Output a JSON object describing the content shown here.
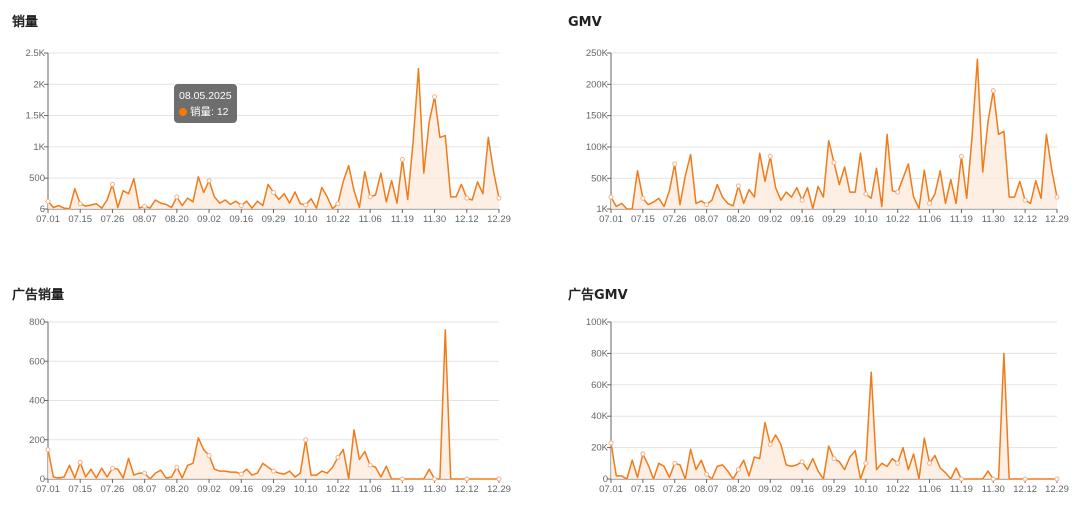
{
  "colors": {
    "line": "#f07b1a",
    "fill": "#fdebdc",
    "grid": "#e3e3e3",
    "axis": "#666666"
  },
  "x_labels": [
    "07.01",
    "07.15",
    "07.26",
    "08.07",
    "08.20",
    "09.02",
    "09.16",
    "09.29",
    "10.10",
    "10.22",
    "11.06",
    "11.19",
    "11.30",
    "12.12",
    "12.29"
  ],
  "tooltip": {
    "date": "08.05.2025",
    "series": "销量",
    "value": "12",
    "text": "销量: 12"
  },
  "chart_data": [
    {
      "type": "area",
      "title": "销量",
      "ylim": [
        6,
        2500
      ],
      "yticks": [
        {
          "v": 6,
          "label": "6"
        },
        {
          "v": 500,
          "label": "500"
        },
        {
          "v": 1000,
          "label": "1K"
        },
        {
          "v": 1500,
          "label": "1.5K"
        },
        {
          "v": 2000,
          "label": "2K"
        },
        {
          "v": 2500,
          "label": "2.5K"
        }
      ],
      "x_range": [
        "07.01",
        "12.29"
      ],
      "values": [
        130,
        30,
        60,
        20,
        10,
        330,
        90,
        50,
        70,
        90,
        20,
        150,
        400,
        30,
        300,
        250,
        490,
        20,
        50,
        20,
        150,
        100,
        80,
        30,
        200,
        60,
        180,
        120,
        520,
        270,
        460,
        200,
        100,
        150,
        80,
        130,
        60,
        130,
        20,
        130,
        60,
        400,
        270,
        160,
        250,
        100,
        280,
        90,
        70,
        170,
        20,
        350,
        200,
        10,
        90,
        450,
        700,
        300,
        30,
        600,
        200,
        230,
        580,
        120,
        460,
        100,
        800,
        160,
        1080,
        2250,
        580,
        1400,
        1800,
        1150,
        1180,
        200,
        200,
        400,
        180,
        150,
        440,
        250,
        1150,
        600,
        180
      ]
    },
    {
      "type": "area",
      "title": "GMV",
      "ylim": [
        1000,
        250000
      ],
      "yticks": [
        {
          "v": 1000,
          "label": "1K"
        },
        {
          "v": 50000,
          "label": "50K"
        },
        {
          "v": 100000,
          "label": "100K"
        },
        {
          "v": 150000,
          "label": "150K"
        },
        {
          "v": 200000,
          "label": "200K"
        },
        {
          "v": 250000,
          "label": "250K"
        }
      ],
      "x_range": [
        "07.01",
        "12.29"
      ],
      "values": [
        20000,
        5000,
        10000,
        1000,
        1000,
        62000,
        18000,
        8000,
        12000,
        18000,
        5000,
        30000,
        73000,
        8000,
        54000,
        88000,
        10000,
        14000,
        8000,
        15000,
        40000,
        20000,
        10000,
        6000,
        38000,
        10000,
        32000,
        20000,
        90000,
        45000,
        85000,
        35000,
        15000,
        28000,
        20000,
        35000,
        15000,
        35000,
        2000,
        37000,
        20000,
        110000,
        75000,
        40000,
        68000,
        28000,
        28000,
        90000,
        25000,
        18000,
        66000,
        5000,
        120000,
        30000,
        28000,
        50000,
        73000,
        20000,
        2000,
        63000,
        10000,
        25000,
        62000,
        10000,
        48000,
        10000,
        85000,
        18000,
        115000,
        240000,
        60000,
        140000,
        190000,
        120000,
        125000,
        20000,
        20000,
        45000,
        15000,
        10000,
        46000,
        18000,
        120000,
        64000,
        20000
      ]
    },
    {
      "type": "area",
      "title": "广告销量",
      "ylim": [
        0,
        800
      ],
      "yticks": [
        {
          "v": 0,
          "label": "0"
        },
        {
          "v": 200,
          "label": "200"
        },
        {
          "v": 400,
          "label": "400"
        },
        {
          "v": 600,
          "label": "600"
        },
        {
          "v": 800,
          "label": "800"
        }
      ],
      "x_range": [
        "07.01",
        "12.29"
      ],
      "values": [
        150,
        10,
        5,
        10,
        70,
        5,
        85,
        10,
        50,
        5,
        55,
        10,
        55,
        50,
        5,
        105,
        20,
        30,
        30,
        0,
        30,
        45,
        5,
        10,
        60,
        5,
        70,
        80,
        210,
        150,
        120,
        50,
        40,
        40,
        35,
        35,
        25,
        50,
        20,
        30,
        80,
        60,
        40,
        30,
        25,
        40,
        10,
        30,
        200,
        20,
        20,
        40,
        30,
        60,
        110,
        150,
        0,
        250,
        100,
        140,
        70,
        60,
        10,
        65,
        0,
        0,
        0,
        0,
        0,
        0,
        0,
        50,
        0,
        0,
        760,
        0,
        0,
        0,
        0,
        0,
        0,
        0,
        0,
        0,
        0
      ]
    },
    {
      "type": "area",
      "title": "广告GMV",
      "ylim": [
        0,
        100000
      ],
      "yticks": [
        {
          "v": 0,
          "label": "0"
        },
        {
          "v": 20000,
          "label": "20K"
        },
        {
          "v": 40000,
          "label": "40K"
        },
        {
          "v": 60000,
          "label": "60K"
        },
        {
          "v": 80000,
          "label": "80K"
        },
        {
          "v": 100000,
          "label": "100K"
        }
      ],
      "x_range": [
        "07.01",
        "12.29"
      ],
      "values": [
        23000,
        2000,
        2000,
        0,
        12000,
        1000,
        16000,
        9000,
        0,
        10000,
        8000,
        1000,
        10000,
        9000,
        0,
        19000,
        6000,
        12000,
        3000,
        0,
        8000,
        9000,
        5000,
        0,
        6000,
        12000,
        2000,
        14000,
        13000,
        36000,
        22000,
        28000,
        22000,
        9000,
        8000,
        9000,
        11000,
        6000,
        13000,
        5000,
        0,
        21000,
        13000,
        11000,
        6000,
        14000,
        18000,
        0,
        10000,
        68000,
        6000,
        10000,
        8000,
        13000,
        10000,
        20000,
        6000,
        16000,
        0,
        26000,
        10000,
        15000,
        7000,
        4000,
        0,
        7000,
        0,
        0,
        0,
        0,
        0,
        5000,
        0,
        0,
        80000,
        0,
        0,
        0,
        0,
        0,
        0,
        0,
        0,
        0,
        0
      ]
    }
  ]
}
